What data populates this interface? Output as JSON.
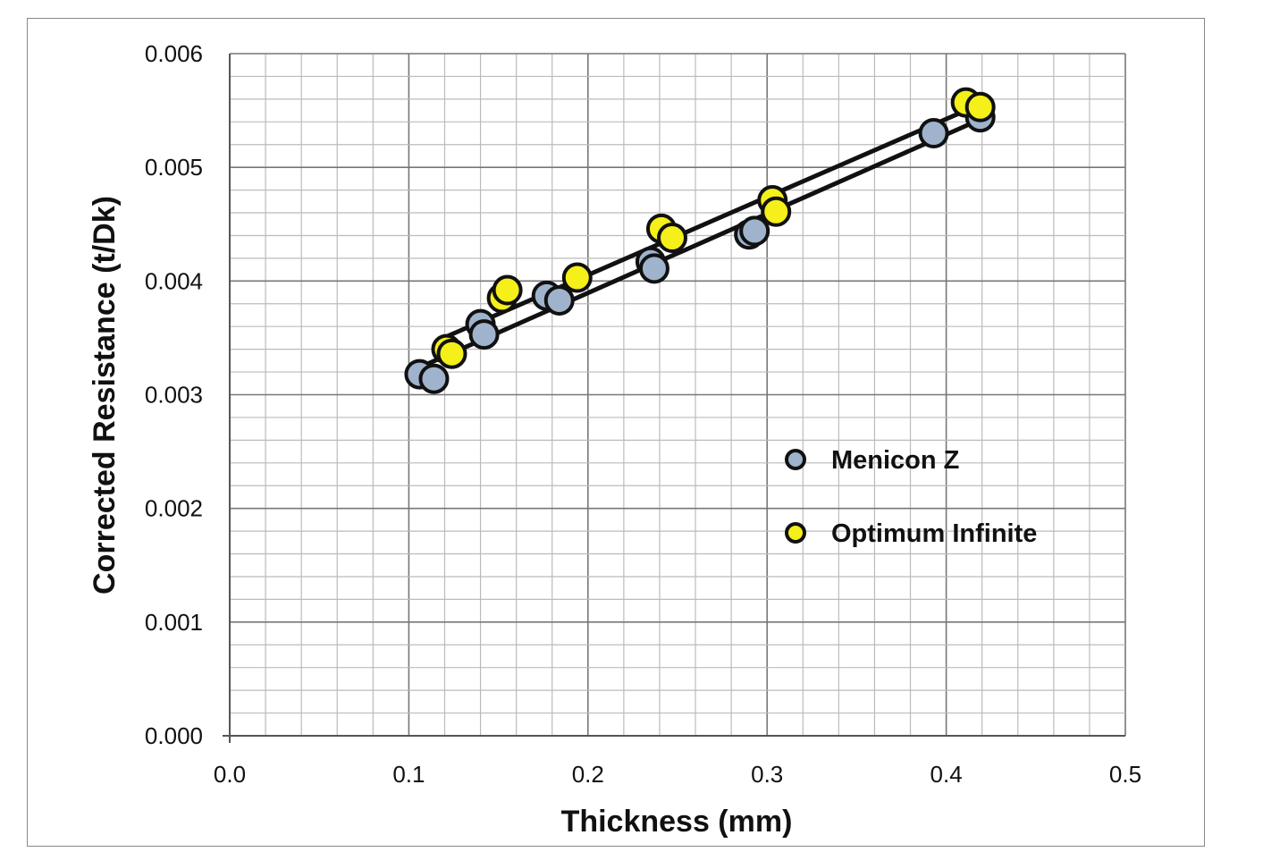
{
  "chart_data": {
    "type": "scatter",
    "title": "",
    "xlabel": "Thickness (mm)",
    "ylabel": "Corrected Resistance (t/Dk)",
    "xlim": [
      0,
      0.5
    ],
    "ylim": [
      0,
      0.006
    ],
    "xticks": [
      "0.0",
      "0.1",
      "0.2",
      "0.3",
      "0.4",
      "0.5"
    ],
    "yticks": [
      "0.000",
      "0.001",
      "0.002",
      "0.003",
      "0.004",
      "0.005",
      "0.006"
    ],
    "grid": true,
    "legend_position": "right-middle",
    "trendlines": "linear",
    "series": [
      {
        "name": "Menicon Z",
        "color": "#9fb3cc",
        "x": [
          0.106,
          0.114,
          0.14,
          0.142,
          0.177,
          0.184,
          0.235,
          0.237,
          0.29,
          0.293,
          0.393,
          0.419
        ],
        "y": [
          0.00318,
          0.00314,
          0.00362,
          0.00353,
          0.00387,
          0.00383,
          0.00417,
          0.00411,
          0.00441,
          0.00444,
          0.0053,
          0.00544
        ]
      },
      {
        "name": "Optimum Infinite",
        "color": "#f5ef1a",
        "x": [
          0.121,
          0.124,
          0.152,
          0.155,
          0.194,
          0.241,
          0.247,
          0.303,
          0.305,
          0.411,
          0.419
        ],
        "y": [
          0.0034,
          0.00336,
          0.00385,
          0.00392,
          0.00403,
          0.00446,
          0.00438,
          0.00471,
          0.00461,
          0.00557,
          0.00553
        ]
      }
    ]
  }
}
